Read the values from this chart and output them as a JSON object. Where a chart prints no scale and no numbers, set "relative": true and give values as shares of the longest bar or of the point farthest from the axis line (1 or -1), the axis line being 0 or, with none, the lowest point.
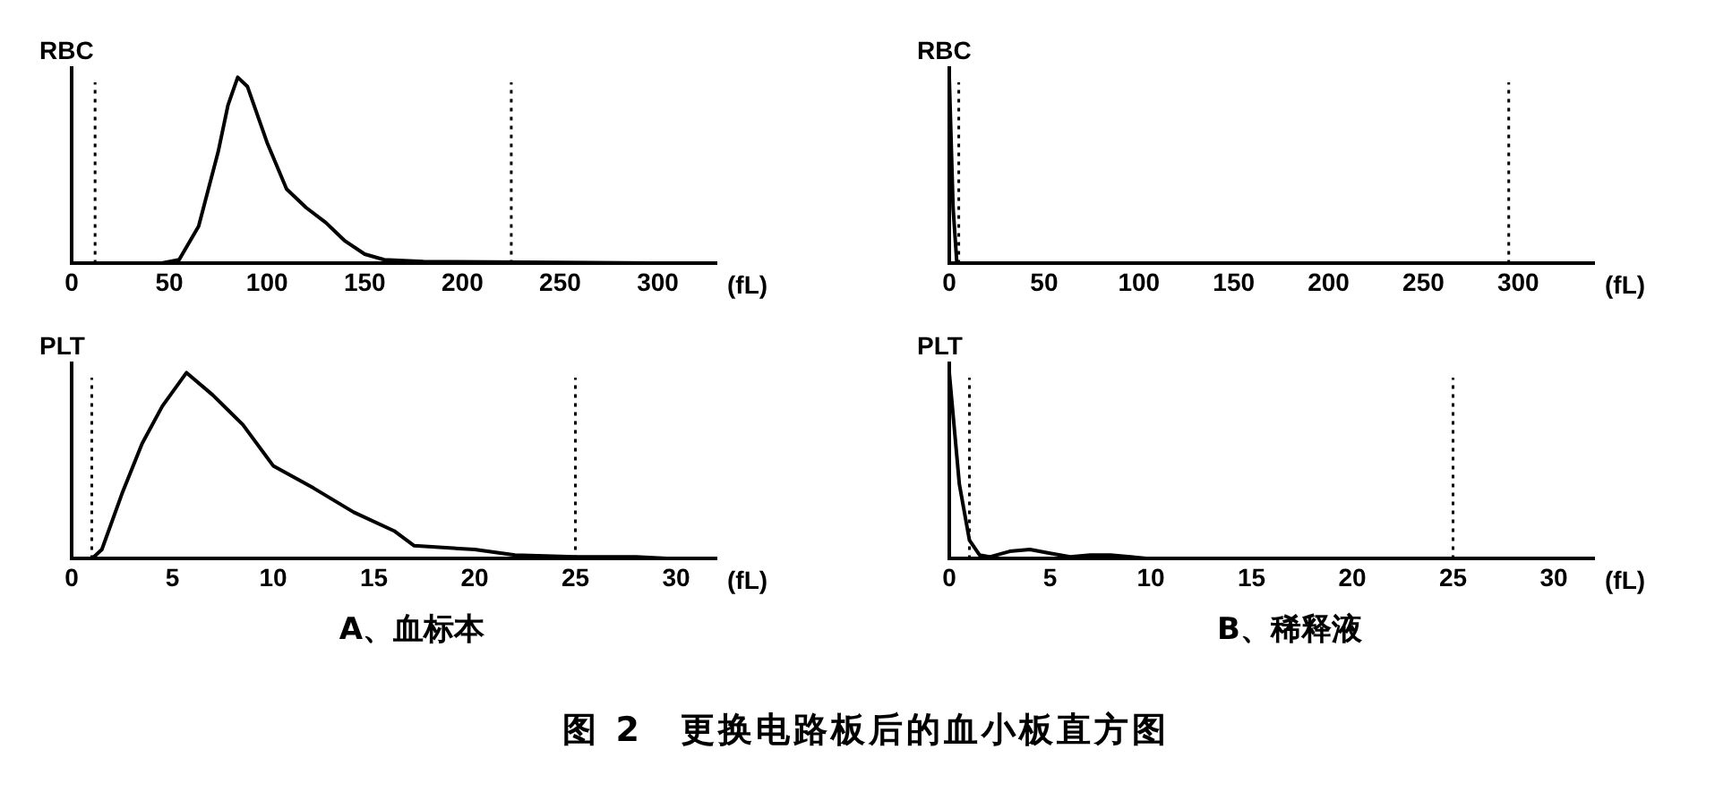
{
  "chart_data": [
    {
      "type": "line",
      "ylabel": "RBC",
      "xlabel": "(fL)",
      "relative": true,
      "xlim": [
        0,
        330
      ],
      "xticks": [
        0,
        50,
        100,
        150,
        200,
        250,
        300
      ],
      "grid": false,
      "legend": false,
      "marker": "none",
      "line_style": "solid",
      "x": [
        0,
        45,
        55,
        65,
        75,
        80,
        85,
        90,
        100,
        110,
        120,
        130,
        140,
        150,
        160,
        180,
        250,
        330
      ],
      "series": [
        {
          "color": "#000000",
          "values": [
            0,
            0,
            0.02,
            0.2,
            0.6,
            0.85,
            1,
            0.95,
            0.65,
            0.4,
            0.3,
            0.22,
            0.12,
            0.05,
            0.02,
            0.01,
            0.005,
            0
          ]
        }
      ],
      "ref_lines": [
        {
          "axis": "x",
          "value": 12,
          "line_style": "dotted",
          "color": "#000000"
        },
        {
          "axis": "x",
          "value": 225,
          "line_style": "dotted",
          "color": "#000000"
        }
      ]
    },
    {
      "type": "line",
      "ylabel": "PLT",
      "xlabel": "(fL)",
      "relative": true,
      "xlim": [
        0,
        32
      ],
      "xticks": [
        0,
        5,
        10,
        15,
        20,
        25,
        30
      ],
      "grid": false,
      "legend": false,
      "marker": "none",
      "line_style": "solid",
      "x": [
        0,
        1,
        1.5,
        2.5,
        3.5,
        4.5,
        5.7,
        7,
        8.5,
        10,
        12,
        14,
        16,
        17,
        20,
        22,
        25,
        28,
        30
      ],
      "series": [
        {
          "color": "#000000",
          "values": [
            0,
            0,
            0.05,
            0.35,
            0.62,
            0.82,
            1,
            0.88,
            0.72,
            0.5,
            0.38,
            0.25,
            0.15,
            0.07,
            0.05,
            0.02,
            0.01,
            0.01,
            0
          ]
        }
      ],
      "ref_lines": [
        {
          "axis": "x",
          "value": 1,
          "line_style": "dotted",
          "color": "#000000"
        },
        {
          "axis": "x",
          "value": 25,
          "line_style": "dotted",
          "color": "#000000"
        }
      ],
      "annotations": [
        "A、血标本"
      ]
    },
    {
      "type": "line",
      "ylabel": "RBC",
      "xlabel": "(fL)",
      "relative": true,
      "xlim": [
        0,
        340
      ],
      "xticks": [
        0,
        50,
        100,
        150,
        200,
        250,
        300
      ],
      "grid": false,
      "legend": false,
      "marker": "none",
      "line_style": "solid",
      "x": [
        0,
        2,
        4,
        340
      ],
      "series": [
        {
          "color": "#000000",
          "values": [
            1,
            0.3,
            0,
            0
          ]
        }
      ],
      "ref_lines": [
        {
          "axis": "x",
          "value": 5,
          "line_style": "dotted",
          "color": "#000000"
        },
        {
          "axis": "x",
          "value": 295,
          "line_style": "dotted",
          "color": "#000000"
        }
      ]
    },
    {
      "type": "line",
      "ylabel": "PLT",
      "xlabel": "(fL)",
      "relative": true,
      "xlim": [
        0,
        32
      ],
      "xticks": [
        0,
        5,
        10,
        15,
        20,
        25,
        30
      ],
      "grid": false,
      "legend": false,
      "marker": "none",
      "line_style": "solid",
      "x": [
        0,
        0.5,
        1,
        1.5,
        2,
        3,
        4,
        5,
        6,
        7,
        8,
        9,
        10,
        32
      ],
      "series": [
        {
          "color": "#000000",
          "values": [
            1,
            0.4,
            0.1,
            0.02,
            0.01,
            0.04,
            0.05,
            0.03,
            0.01,
            0.02,
            0.02,
            0.01,
            0,
            0
          ]
        }
      ],
      "ref_lines": [
        {
          "axis": "x",
          "value": 1,
          "line_style": "dotted",
          "color": "#000000"
        },
        {
          "axis": "x",
          "value": 25,
          "line_style": "dotted",
          "color": "#000000"
        }
      ],
      "annotations": [
        "B、稀释液",
        "图 2　更换电路板后的血小板直方图"
      ]
    }
  ]
}
